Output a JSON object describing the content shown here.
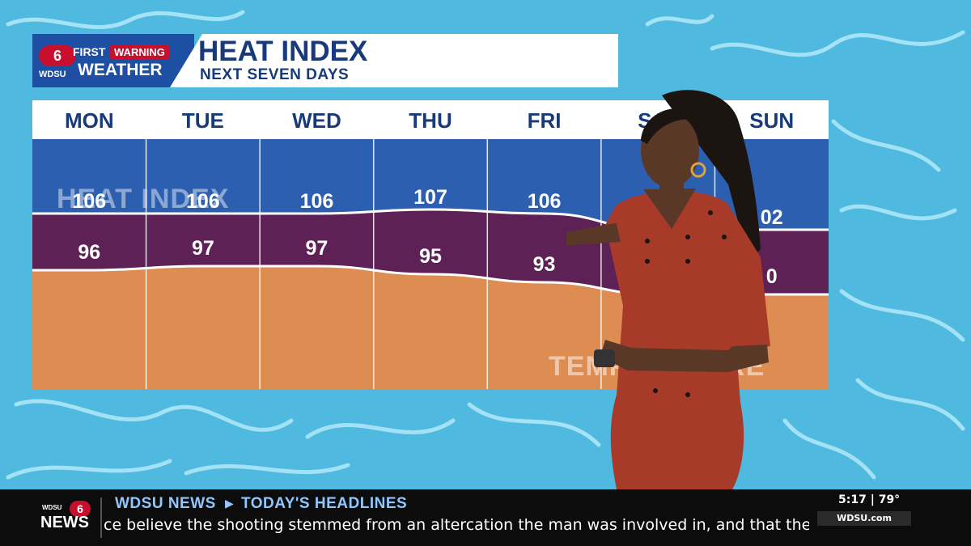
{
  "header": {
    "title": "HEAT INDEX",
    "subtitle": "NEXT SEVEN DAYS",
    "logo": {
      "channel": "6",
      "first": "FIRST",
      "warning": "WARNING",
      "station": "WDSU",
      "weather": "WEATHER"
    }
  },
  "colors": {
    "heat_index_band": "#2d5fb0",
    "temperature_band": "#5e2155",
    "bottom_band": "#de8d52",
    "title_text": "#173a7a",
    "accent_red": "#c8102e"
  },
  "chart_data": {
    "type": "area",
    "title": "HEAT INDEX",
    "subtitle": "NEXT SEVEN DAYS",
    "band_labels": {
      "upper": "HEAT INDEX",
      "lower": "TEMPERATURE"
    },
    "categories": [
      "MON",
      "TUE",
      "WED",
      "THU",
      "FRI",
      "SAT",
      "SUN"
    ],
    "series": [
      {
        "name": "HEAT INDEX",
        "values": [
          106,
          106,
          106,
          107,
          106,
          102,
          102
        ],
        "labels": [
          "106",
          "106",
          "106",
          "107",
          "106",
          "",
          "02"
        ]
      },
      {
        "name": "TEMPERATURE",
        "values": [
          96,
          97,
          97,
          95,
          93,
          90,
          90
        ],
        "labels": [
          "96",
          "97",
          "97",
          "95",
          "93",
          "",
          "0"
        ]
      }
    ],
    "grid": true
  },
  "ticker": {
    "brand": "WDSU NEWS",
    "section": "TODAY'S HEADLINES",
    "headline": "ce believe the shooting stemmed from an altercation the man was involved in, and that the v",
    "time": "5:17",
    "temp": "79°",
    "website": "WDSU.com"
  }
}
